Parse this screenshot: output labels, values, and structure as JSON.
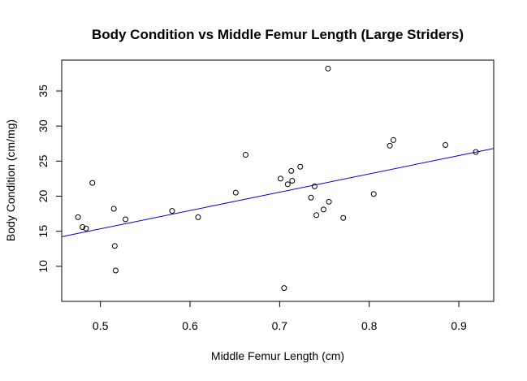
{
  "chart_data": {
    "type": "scatter",
    "title": "Body Condition vs Middle Femur Length (Large Striders)",
    "xlabel": "Middle Femur Length (cm)",
    "ylabel": "Body Condition (cm/mg)",
    "xlim": [
      0.4568,
      0.9389
    ],
    "ylim": [
      5.0,
      39.4
    ],
    "x_ticks": [
      {
        "value": 0.5,
        "label": "0.5"
      },
      {
        "value": 0.6,
        "label": "0.6"
      },
      {
        "value": 0.7,
        "label": "0.7"
      },
      {
        "value": 0.8,
        "label": "0.8"
      },
      {
        "value": 0.9,
        "label": "0.9"
      }
    ],
    "y_ticks": [
      {
        "value": 10,
        "label": "10"
      },
      {
        "value": 15,
        "label": "15"
      },
      {
        "value": 20,
        "label": "20"
      },
      {
        "value": 25,
        "label": "25"
      },
      {
        "value": 30,
        "label": "30"
      },
      {
        "value": 35,
        "label": "35"
      }
    ],
    "points": [
      {
        "x": 0.475,
        "y": 17.0
      },
      {
        "x": 0.48,
        "y": 15.6
      },
      {
        "x": 0.484,
        "y": 15.4
      },
      {
        "x": 0.491,
        "y": 21.9
      },
      {
        "x": 0.515,
        "y": 18.2
      },
      {
        "x": 0.516,
        "y": 12.9
      },
      {
        "x": 0.517,
        "y": 9.4
      },
      {
        "x": 0.528,
        "y": 16.7
      },
      {
        "x": 0.58,
        "y": 17.9
      },
      {
        "x": 0.609,
        "y": 17.0
      },
      {
        "x": 0.651,
        "y": 20.5
      },
      {
        "x": 0.662,
        "y": 25.9
      },
      {
        "x": 0.701,
        "y": 22.5
      },
      {
        "x": 0.705,
        "y": 6.9
      },
      {
        "x": 0.709,
        "y": 21.7
      },
      {
        "x": 0.713,
        "y": 23.6
      },
      {
        "x": 0.714,
        "y": 22.2
      },
      {
        "x": 0.723,
        "y": 24.2
      },
      {
        "x": 0.735,
        "y": 19.8
      },
      {
        "x": 0.739,
        "y": 21.4
      },
      {
        "x": 0.741,
        "y": 17.3
      },
      {
        "x": 0.749,
        "y": 18.1
      },
      {
        "x": 0.754,
        "y": 38.2
      },
      {
        "x": 0.755,
        "y": 19.2
      },
      {
        "x": 0.771,
        "y": 16.9
      },
      {
        "x": 0.805,
        "y": 20.3
      },
      {
        "x": 0.823,
        "y": 27.2
      },
      {
        "x": 0.827,
        "y": 28.0
      },
      {
        "x": 0.885,
        "y": 27.3
      },
      {
        "x": 0.919,
        "y": 26.3
      }
    ],
    "regression_line": {
      "color": "#0000cc",
      "intercept": 2.3,
      "slope": 26.1
    },
    "marker": {
      "shape": "open-circle",
      "color": "#000000"
    },
    "grid": false
  }
}
